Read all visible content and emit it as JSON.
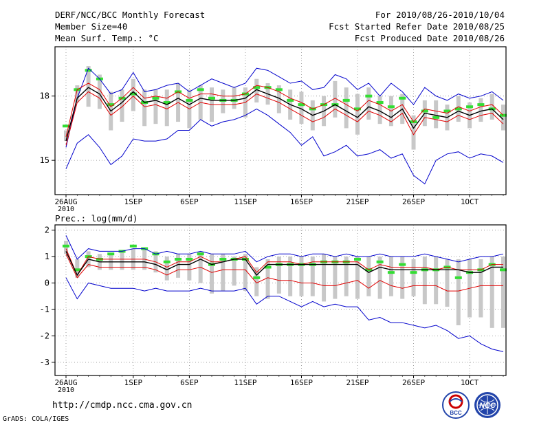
{
  "header": {
    "title": "DERF/NCC/BCC Monthly Forecast",
    "member_size": "Member Size=40",
    "variable": "Mean Surf. Temp.: °C",
    "period": "For 2010/08/26-2010/10/04",
    "fcst_started": "Fcst Started Refer Date 2010/08/25",
    "fcst_produced": "Fcst Produced Date 2010/08/26"
  },
  "footer": {
    "url": "http://cmdp.ncc.cma.gov.cn",
    "credit": "GrADS: COLA/IGES",
    "logos": [
      "BCC",
      "NCC"
    ]
  },
  "colors": {
    "mean": "#000000",
    "spread_inner": "#e00000",
    "spread_outer": "#0000cc",
    "box": "#c8c8c8",
    "marker": "#33dd33"
  },
  "chart_data": [
    {
      "type": "line",
      "title": "Mean Surf. Temp.: °C",
      "x_tick_labels": [
        "26AUG\n2010",
        "1SEP",
        "6SEP",
        "11SEP",
        "16SEP",
        "21SEP",
        "26SEP",
        "1OCT"
      ],
      "x_tick_days": [
        0,
        6,
        11,
        16,
        21,
        26,
        31,
        36
      ],
      "y_ticks": [
        15,
        18
      ],
      "ylim": [
        13.4,
        20.3
      ],
      "days": 40,
      "series": [
        {
          "name": "ensemble-max",
          "color": "#0000cc",
          "values": [
            15.6,
            17.9,
            19.3,
            18.8,
            18.1,
            18.3,
            19.1,
            18.2,
            18.3,
            18.5,
            18.6,
            18.2,
            18.5,
            18.8,
            18.6,
            18.4,
            18.6,
            19.3,
            19.2,
            18.9,
            18.6,
            18.7,
            18.3,
            18.4,
            19.0,
            18.8,
            18.3,
            18.6,
            18.0,
            18.6,
            18.2,
            17.6,
            18.4,
            18.0,
            17.8,
            18.1,
            17.9,
            18.0,
            18.2,
            17.8
          ]
        },
        {
          "name": "upper-spread",
          "color": "#e00000",
          "values": [
            16.1,
            18.3,
            18.6,
            18.3,
            17.5,
            17.9,
            18.4,
            17.9,
            18.0,
            17.9,
            18.2,
            17.9,
            18.1,
            18.1,
            18.0,
            18.0,
            18.1,
            18.5,
            18.4,
            18.2,
            17.9,
            17.7,
            17.4,
            17.6,
            17.9,
            17.6,
            17.3,
            17.8,
            17.6,
            17.3,
            17.6,
            16.8,
            17.4,
            17.3,
            17.2,
            17.5,
            17.3,
            17.5,
            17.6,
            17.1
          ]
        },
        {
          "name": "ensemble-mean",
          "color": "#000000",
          "values": [
            15.9,
            17.9,
            18.4,
            18.1,
            17.3,
            17.7,
            18.2,
            17.7,
            17.8,
            17.6,
            17.9,
            17.6,
            17.9,
            17.8,
            17.8,
            17.8,
            17.9,
            18.3,
            18.1,
            17.9,
            17.6,
            17.4,
            17.1,
            17.3,
            17.6,
            17.3,
            17.0,
            17.5,
            17.3,
            17.0,
            17.4,
            16.5,
            17.2,
            17.1,
            17.0,
            17.3,
            17.1,
            17.3,
            17.4,
            16.9
          ]
        },
        {
          "name": "lower-spread",
          "color": "#e00000",
          "values": [
            15.7,
            17.7,
            18.2,
            17.9,
            17.1,
            17.5,
            18.0,
            17.5,
            17.6,
            17.4,
            17.7,
            17.4,
            17.7,
            17.6,
            17.6,
            17.6,
            17.7,
            18.1,
            17.9,
            17.7,
            17.4,
            17.1,
            16.8,
            17.0,
            17.4,
            17.1,
            16.8,
            17.3,
            17.1,
            16.8,
            17.2,
            16.2,
            17.0,
            16.9,
            16.8,
            17.1,
            16.9,
            17.1,
            17.2,
            16.7
          ]
        },
        {
          "name": "ensemble-min",
          "color": "#0000cc",
          "values": [
            14.6,
            15.8,
            16.2,
            15.6,
            14.8,
            15.2,
            16.0,
            15.9,
            15.9,
            16.0,
            16.4,
            16.4,
            16.9,
            16.6,
            16.8,
            16.9,
            17.1,
            17.4,
            17.1,
            16.7,
            16.3,
            15.7,
            16.1,
            15.2,
            15.4,
            15.7,
            15.2,
            15.3,
            15.5,
            15.1,
            15.3,
            14.3,
            13.9,
            15.0,
            15.3,
            15.4,
            15.1,
            15.3,
            15.2,
            14.9
          ]
        }
      ],
      "boxes": {
        "max": [
          16.4,
          18.5,
          19.4,
          19.0,
          18.2,
          18.3,
          18.8,
          18.3,
          18.3,
          18.3,
          18.6,
          18.3,
          18.5,
          18.4,
          18.3,
          18.4,
          18.4,
          18.8,
          18.6,
          18.5,
          18.3,
          18.2,
          17.8,
          18.0,
          18.7,
          18.4,
          18.1,
          18.4,
          18.0,
          18.0,
          18.1,
          17.1,
          17.8,
          17.8,
          17.6,
          18.0,
          17.7,
          17.9,
          18.1,
          17.6
        ],
        "min": [
          15.9,
          17.7,
          17.5,
          17.4,
          16.4,
          16.8,
          17.3,
          16.6,
          16.7,
          16.6,
          16.8,
          16.5,
          16.9,
          16.8,
          17.2,
          17.4,
          17.0,
          17.7,
          17.6,
          17.2,
          16.9,
          16.7,
          16.4,
          16.6,
          17.0,
          16.5,
          16.2,
          16.9,
          16.7,
          16.6,
          16.7,
          15.5,
          16.6,
          16.5,
          16.4,
          16.8,
          16.5,
          16.8,
          16.9,
          16.4
        ],
        "marker": [
          16.6,
          18.3,
          19.2,
          18.8,
          17.6,
          17.9,
          18.1,
          17.7,
          17.9,
          17.7,
          18.2,
          17.8,
          18.3,
          17.9,
          17.8,
          17.8,
          18.1,
          18.4,
          18.4,
          18.3,
          17.8,
          17.6,
          17.4,
          17.6,
          17.6,
          17.8,
          17.4,
          18.0,
          17.7,
          17.5,
          17.9,
          16.8,
          17.3,
          17.0,
          17.3,
          17.4,
          17.5,
          17.6,
          17.4,
          17.1
        ]
      }
    },
    {
      "type": "line",
      "title": "Prec.: log(mm/d)",
      "x_tick_labels": [
        "26AUG\n2010",
        "1SEP",
        "6SEP",
        "11SEP",
        "16SEP",
        "21SEP",
        "26SEP",
        "1OCT"
      ],
      "x_tick_days": [
        0,
        6,
        11,
        16,
        21,
        26,
        31,
        36
      ],
      "y_ticks": [
        -3,
        -2,
        -1,
        0,
        1,
        2
      ],
      "ylim": [
        -3.5,
        2.2
      ],
      "days": 40,
      "series": [
        {
          "name": "ensemble-max",
          "color": "#0000cc",
          "values": [
            1.8,
            0.9,
            1.3,
            1.2,
            1.2,
            1.2,
            1.3,
            1.3,
            1.1,
            1.2,
            1.1,
            1.1,
            1.2,
            1.1,
            1.1,
            1.1,
            1.2,
            0.8,
            1.0,
            1.1,
            1.1,
            1.0,
            1.1,
            1.1,
            1.0,
            1.1,
            1.0,
            1.0,
            1.1,
            1.0,
            1.0,
            1.0,
            1.1,
            1.0,
            0.9,
            0.8,
            0.9,
            1.0,
            1.0,
            1.1
          ]
        },
        {
          "name": "upper-spread",
          "color": "#e00000",
          "values": [
            1.3,
            0.3,
            1.0,
            0.9,
            0.9,
            0.9,
            0.9,
            0.9,
            0.8,
            0.6,
            0.8,
            0.8,
            1.0,
            0.8,
            0.8,
            0.9,
            1.0,
            0.4,
            0.8,
            0.8,
            0.8,
            0.7,
            0.8,
            0.8,
            0.8,
            0.8,
            0.8,
            0.5,
            0.7,
            0.6,
            0.6,
            0.6,
            0.6,
            0.5,
            0.6,
            0.5,
            0.5,
            0.5,
            0.7,
            0.7
          ]
        },
        {
          "name": "ensemble-mean",
          "color": "#000000",
          "values": [
            1.2,
            0.3,
            0.9,
            0.8,
            0.8,
            0.8,
            0.8,
            0.8,
            0.7,
            0.5,
            0.7,
            0.7,
            0.9,
            0.7,
            0.8,
            0.9,
            0.9,
            0.3,
            0.7,
            0.7,
            0.7,
            0.7,
            0.7,
            0.7,
            0.7,
            0.7,
            0.7,
            0.4,
            0.6,
            0.5,
            0.5,
            0.5,
            0.5,
            0.5,
            0.5,
            0.5,
            0.4,
            0.4,
            0.6,
            0.6
          ]
        },
        {
          "name": "lower-spread",
          "color": "#e00000",
          "values": [
            1.1,
            0.2,
            0.7,
            0.6,
            0.6,
            0.6,
            0.6,
            0.6,
            0.5,
            0.3,
            0.5,
            0.5,
            0.6,
            0.4,
            0.5,
            0.5,
            0.5,
            0.0,
            0.2,
            0.1,
            0.1,
            0.0,
            0.0,
            -0.1,
            -0.1,
            0.0,
            0.1,
            -0.2,
            0.1,
            -0.1,
            -0.2,
            -0.1,
            -0.1,
            -0.1,
            -0.3,
            -0.3,
            -0.2,
            -0.1,
            -0.1,
            -0.1
          ]
        },
        {
          "name": "ensemble-min",
          "color": "#0000cc",
          "values": [
            0.2,
            -0.6,
            0.0,
            -0.1,
            -0.2,
            -0.2,
            -0.2,
            -0.3,
            -0.2,
            -0.3,
            -0.3,
            -0.3,
            -0.2,
            -0.3,
            -0.3,
            -0.3,
            -0.2,
            -0.8,
            -0.5,
            -0.5,
            -0.7,
            -0.9,
            -0.7,
            -0.9,
            -0.8,
            -0.9,
            -0.9,
            -1.4,
            -1.3,
            -1.5,
            -1.5,
            -1.6,
            -1.7,
            -1.6,
            -1.8,
            -2.1,
            -2.0,
            -2.3,
            -2.5,
            -2.6
          ]
        }
      ],
      "boxes": {
        "max": [
          1.6,
          0.9,
          1.2,
          1.1,
          1.1,
          1.2,
          1.3,
          1.3,
          1.2,
          1.0,
          1.1,
          1.1,
          1.2,
          1.1,
          1.1,
          1.0,
          1.1,
          0.6,
          0.9,
          1.0,
          1.0,
          1.0,
          1.0,
          1.1,
          1.0,
          1.0,
          1.0,
          1.0,
          1.0,
          1.0,
          1.0,
          0.9,
          1.0,
          1.0,
          0.9,
          0.9,
          0.9,
          0.9,
          1.0,
          1.0
        ],
        "min": [
          1.1,
          0.2,
          0.6,
          0.5,
          0.5,
          0.5,
          0.5,
          0.5,
          0.4,
          0.1,
          0.2,
          0.1,
          0.0,
          -0.4,
          -0.3,
          -0.1,
          -0.3,
          -0.5,
          -0.6,
          -0.4,
          -0.5,
          -0.5,
          -0.5,
          -0.7,
          -0.6,
          -0.5,
          -0.6,
          -0.5,
          -0.6,
          -0.5,
          -0.6,
          -0.5,
          -0.8,
          -0.8,
          -0.9,
          -1.6,
          -1.3,
          -1.3,
          -1.7,
          -1.7
        ]
      },
      "markers": [
        1.4,
        0.5,
        1.0,
        0.9,
        1.1,
        1.2,
        1.4,
        1.3,
        1.1,
        0.8,
        0.9,
        0.9,
        1.1,
        0.7,
        0.9,
        0.9,
        0.9,
        0.2,
        0.6,
        0.7,
        0.7,
        0.7,
        0.7,
        0.8,
        0.8,
        0.8,
        0.9,
        0.5,
        0.8,
        0.4,
        0.7,
        0.4,
        0.5,
        0.5,
        0.6,
        0.2,
        0.4,
        0.5,
        0.7,
        0.5
      ]
    }
  ]
}
